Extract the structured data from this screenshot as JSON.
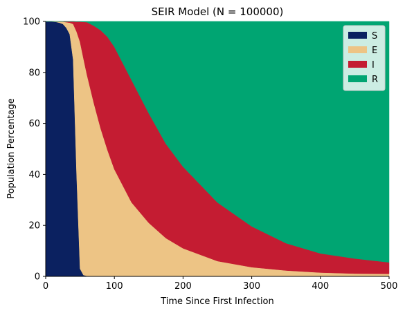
{
  "chart_data": {
    "type": "area",
    "stacked": true,
    "title": "SEIR Model (N = 100000)",
    "xlabel": "Time Since First Infection",
    "ylabel": "Population Percentage",
    "xlim": [
      0,
      500
    ],
    "ylim": [
      0,
      100
    ],
    "xticks": [
      "0",
      "100",
      "200",
      "300",
      "400",
      "500"
    ],
    "yticks": [
      "0",
      "20",
      "40",
      "60",
      "80",
      "100"
    ],
    "grid": false,
    "legend_position": "top-right",
    "x": [
      0,
      5,
      10,
      15,
      20,
      25,
      30,
      35,
      40,
      45,
      50,
      55,
      60,
      70,
      80,
      90,
      100,
      125,
      150,
      175,
      200,
      250,
      300,
      350,
      400,
      450,
      500
    ],
    "series": [
      {
        "name": "S",
        "color": "#0b2160",
        "values": [
          100,
          100,
          99.9,
          99.8,
          99.5,
          99,
          97.5,
          95,
          85,
          40,
          3,
          0.5,
          0.2,
          0.1,
          0.05,
          0.03,
          0.02,
          0.01,
          0.01,
          0,
          0,
          0,
          0,
          0,
          0,
          0,
          0
        ]
      },
      {
        "name": "E",
        "color": "#edc485",
        "values": [
          0,
          0,
          0.1,
          0.2,
          0.4,
          0.9,
          2.2,
          4.5,
          14,
          56,
          89,
          85,
          79,
          68,
          58,
          49.5,
          42,
          29,
          21,
          15,
          11,
          6,
          3.6,
          2.3,
          1.5,
          1.1,
          1
        ]
      },
      {
        "name": "I",
        "color": "#c41c32",
        "values": [
          0,
          0,
          0,
          0,
          0.1,
          0.1,
          0.3,
          0.5,
          1,
          3.9,
          7.9,
          14.3,
          20.5,
          30.2,
          38.5,
          44.4,
          48,
          48,
          43,
          37,
          32,
          23,
          16,
          10.7,
          7.5,
          5.9,
          4.5
        ]
      },
      {
        "name": "R",
        "color": "#00a572",
        "values": [
          0,
          0,
          0,
          0,
          0,
          0,
          0,
          0,
          0,
          0.1,
          0.1,
          0.2,
          0.3,
          1.7,
          3.45,
          6.07,
          9.98,
          22.99,
          35.99,
          48,
          57,
          71,
          80.4,
          87,
          91,
          93,
          94.5
        ]
      }
    ]
  }
}
